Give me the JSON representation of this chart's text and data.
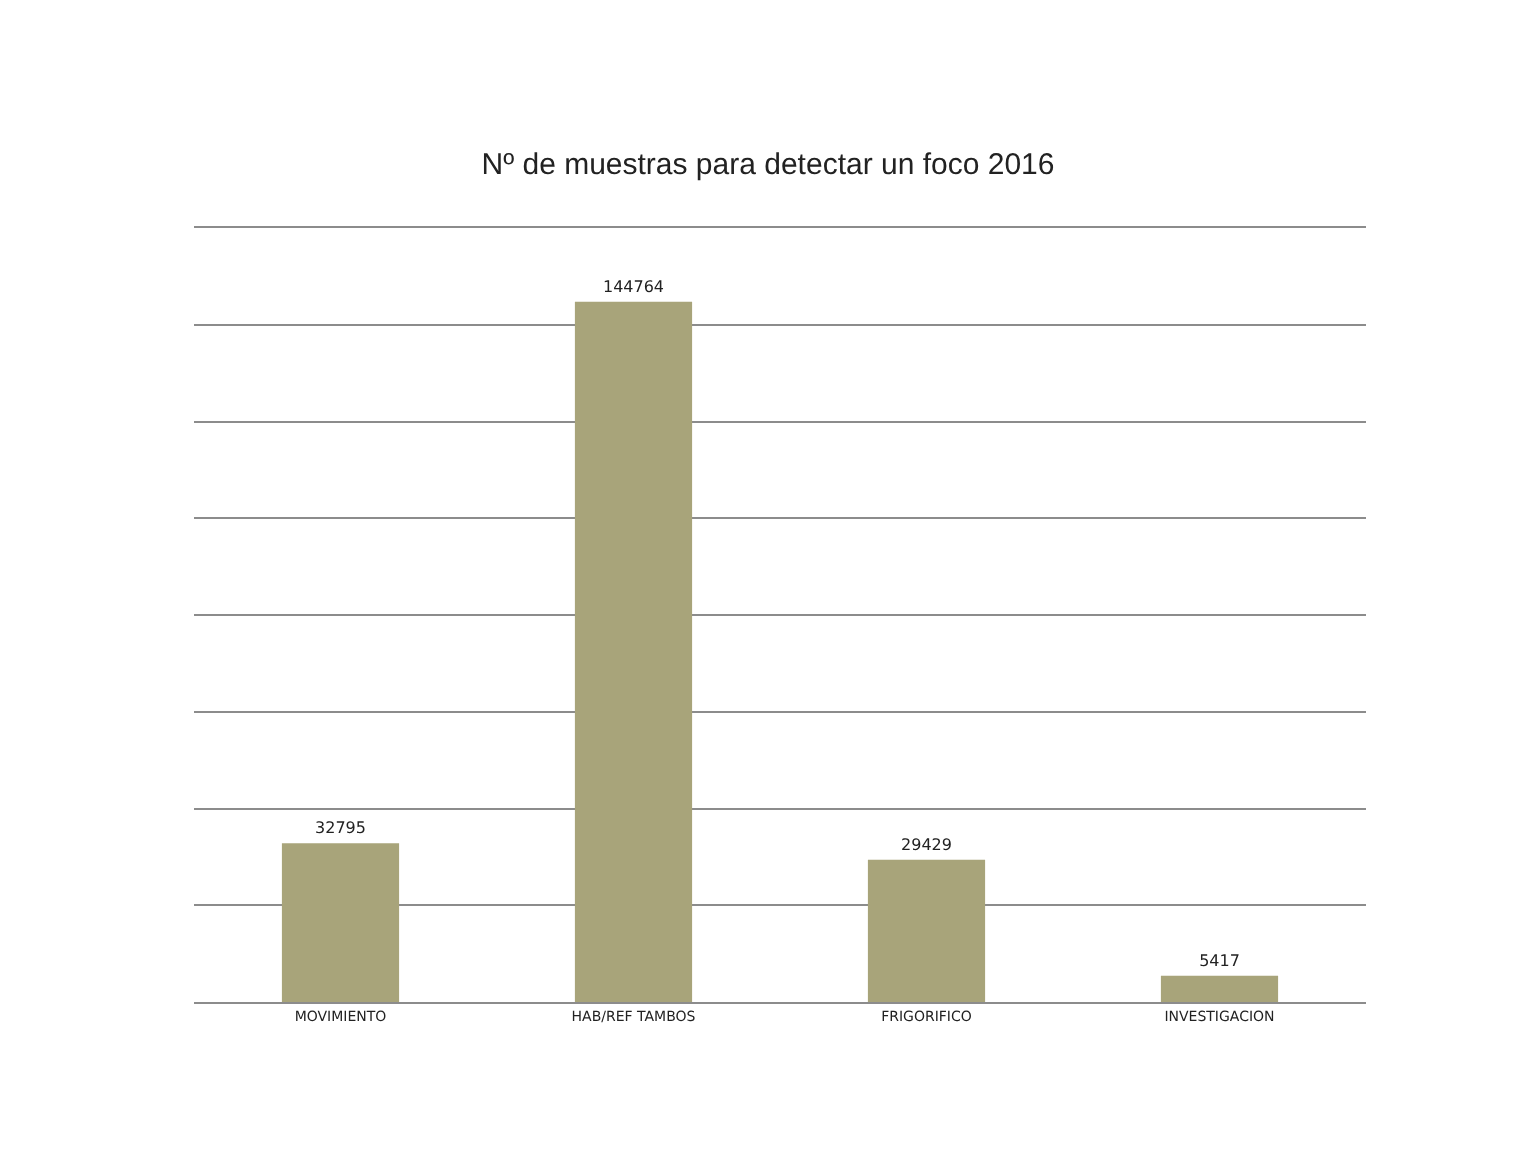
{
  "chart_data": {
    "type": "bar",
    "title": "Nº de muestras para detectar un foco 2016",
    "categories": [
      "MOVIMIENTO",
      "HAB/REF TAMBOS",
      "FRIGORIFICO",
      "INVESTIGACION"
    ],
    "values": [
      32795,
      144764,
      29429,
      5417
    ],
    "color": "#a8a47a",
    "ylim": [
      0,
      160000
    ],
    "yticks": [
      {
        "value": 0,
        "label": null
      },
      {
        "value": 20000,
        "label": null
      },
      {
        "value": 40000,
        "label": null
      },
      {
        "value": 60000,
        "label": null
      },
      {
        "value": 80000,
        "label": null
      },
      {
        "value": 100000,
        "label": null
      },
      {
        "value": 120000,
        "label": null
      },
      {
        "value": 140000,
        "label": null
      },
      {
        "value": 160000,
        "label": null
      }
    ],
    "grid": "y",
    "tick_labels": "x",
    "data_labels": true
  }
}
